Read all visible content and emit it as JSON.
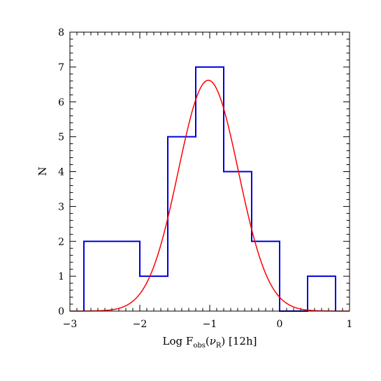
{
  "chart_data": {
    "type": "histogram",
    "title": "",
    "xlabel": {
      "prefix": "Log F",
      "sub1": "obs",
      "mid": "(",
      "nu": "ν",
      "sub2": "R",
      "suffix": ") [12h]"
    },
    "ylabel": "N",
    "xlim": [
      -3,
      1
    ],
    "ylim": [
      0,
      8
    ],
    "x_ticks": [
      -3,
      -2,
      -1,
      0,
      1
    ],
    "x_tick_labels": [
      "−3",
      "−2",
      "−1",
      "0",
      "1"
    ],
    "y_ticks": [
      0,
      1,
      2,
      3,
      4,
      5,
      6,
      7,
      8
    ],
    "y_tick_labels": [
      "0",
      "1",
      "2",
      "3",
      "4",
      "5",
      "6",
      "7",
      "8"
    ],
    "histogram": {
      "color": "#0000dd",
      "bins": [
        {
          "x0": -2.8,
          "x1": -2.0,
          "count": 2
        },
        {
          "x0": -2.0,
          "x1": -1.6,
          "count": 1
        },
        {
          "x0": -1.6,
          "x1": -1.2,
          "count": 5
        },
        {
          "x0": -1.2,
          "x1": -0.8,
          "count": 7
        },
        {
          "x0": -0.8,
          "x1": -0.4,
          "count": 4
        },
        {
          "x0": -0.4,
          "x1": 0.0,
          "count": 2
        },
        {
          "x0": 0.0,
          "x1": 0.4,
          "count": 0
        },
        {
          "x0": 0.4,
          "x1": 0.8,
          "count": 1
        }
      ]
    },
    "gaussian_fit": {
      "color": "#ff0000",
      "amplitude": 6.62,
      "mean": -1.02,
      "sigma": 0.43
    }
  }
}
